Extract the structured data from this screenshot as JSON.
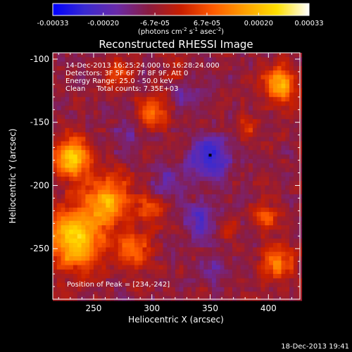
{
  "chart_data": {
    "type": "heatmap",
    "title": "Reconstructed RHESSI Image",
    "xlabel": "Heliocentric X (arcsec)",
    "ylabel": "Heliocentric Y (arcsec)",
    "xlim": [
      215,
      427
    ],
    "ylim": [
      -290,
      -95
    ],
    "x_ticks": [
      250,
      300,
      350,
      400
    ],
    "y_ticks": [
      -100,
      -150,
      -200,
      -250
    ],
    "colorbar": {
      "range": [
        -0.00033,
        0.00033
      ],
      "tick_values": [
        -0.00033,
        -0.0002,
        -6.7e-05,
        6.7e-05,
        0.0002,
        0.00033
      ],
      "tick_labels": [
        "-0.00033",
        "-0.00020",
        "-6.7e-05",
        "6.7e-05",
        "0.00020",
        "0.00033"
      ],
      "units_label": "(photons cm",
      "units_exp1": "-2",
      "units_mid": " s",
      "units_exp2": "-1",
      "units_mid2": " asec",
      "units_exp3": "-2",
      "units_close": ")",
      "colors": [
        "#0000ff",
        "#3a2ad0",
        "#6a2aa8",
        "#8a1c40",
        "#c81e00",
        "#ff5a00",
        "#ffa000",
        "#ffe000",
        "#ffffff"
      ]
    },
    "annotations": [
      "14-Dec-2013 16:25:24.000 to 16:28:24.000",
      "Detectors: 3F 5F 6F 7F 8F 9F, Att 0",
      "Energy Range: 25.0 - 50.0 keV",
      "Clean     Total counts: 7.35E+03"
    ],
    "peak_label": "Position of Peak = [234,-242]",
    "peak": [
      234,
      -242
    ],
    "minimum_marker": [
      350,
      -176
    ],
    "hot_regions": [
      {
        "x": 234,
        "y": -242,
        "sigma": 16,
        "amp": 0.00033
      },
      {
        "x": 262,
        "y": -212,
        "sigma": 14,
        "amp": 0.00024
      },
      {
        "x": 232,
        "y": -178,
        "sigma": 11,
        "amp": 0.0003
      },
      {
        "x": 285,
        "y": -252,
        "sigma": 10,
        "amp": 0.00018
      },
      {
        "x": 300,
        "y": -218,
        "sigma": 9,
        "amp": 0.00012
      },
      {
        "x": 302,
        "y": -140,
        "sigma": 9,
        "amp": 0.00018
      },
      {
        "x": 272,
        "y": -113,
        "sigma": 8,
        "amp": 0.00014
      },
      {
        "x": 410,
        "y": -120,
        "sigma": 10,
        "amp": 0.00026
      },
      {
        "x": 398,
        "y": -226,
        "sigma": 7,
        "amp": 0.00016
      },
      {
        "x": 408,
        "y": -262,
        "sigma": 9,
        "amp": 0.0002
      },
      {
        "x": 383,
        "y": -153,
        "sigma": 7,
        "amp": 0.0001
      },
      {
        "x": 365,
        "y": -235,
        "sigma": 6,
        "amp": 0.00011
      },
      {
        "x": 320,
        "y": -108,
        "sigma": 6,
        "amp": 9e-05
      }
    ],
    "cold_regions": [
      {
        "x": 350,
        "y": -178,
        "sigma": 12,
        "amp": -0.00018
      },
      {
        "x": 342,
        "y": -228,
        "sigma": 10,
        "amp": -0.00013
      },
      {
        "x": 312,
        "y": -200,
        "sigma": 9,
        "amp": -0.0001
      },
      {
        "x": 330,
        "y": -130,
        "sigma": 9,
        "amp": -8e-05
      },
      {
        "x": 352,
        "y": -265,
        "sigma": 8,
        "amp": -8e-05
      },
      {
        "x": 278,
        "y": -160,
        "sigma": 8,
        "amp": -6e-05
      }
    ]
  },
  "footer": {
    "timestamp": "18-Dec-2013 19:41"
  }
}
